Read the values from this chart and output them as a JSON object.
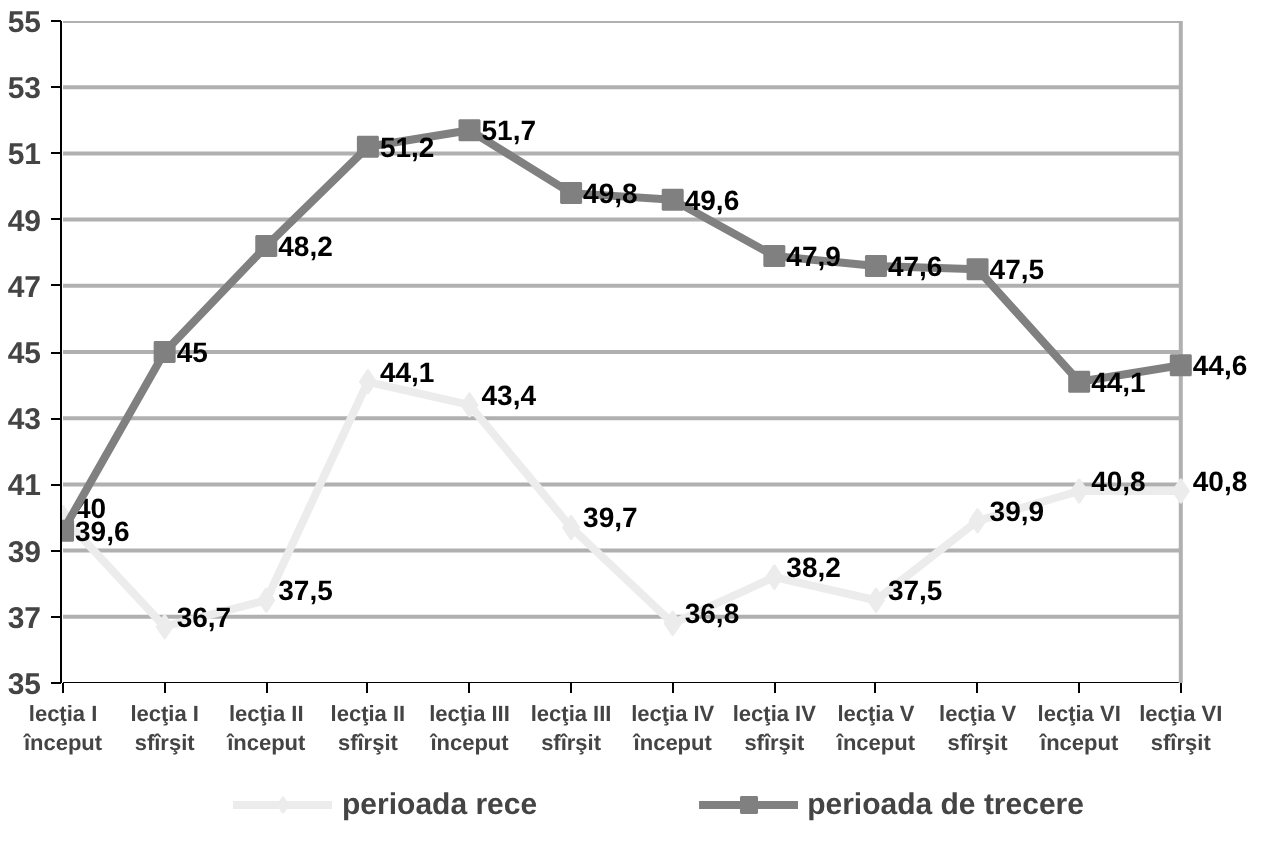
{
  "chart_data": {
    "type": "line",
    "categories": [
      "lecţia I început",
      "lecţia I sfîrşit",
      "lecţia II început",
      "lecţia II sfîrşit",
      "lecţia III început",
      "lecţia III sfîrşit",
      "lecţia IV început",
      "lecţia IV sfîrşit",
      "lecţia V început",
      "lecţia V sfîrşit",
      "lecţia VI început",
      "lecţia VI sfîrşit"
    ],
    "series": [
      {
        "name": "perioada rece",
        "color": "#ececec",
        "marker": "diamond",
        "values": [
          40,
          36.7,
          37.5,
          44.1,
          43.4,
          39.7,
          36.8,
          38.2,
          37.5,
          39.9,
          40.8,
          40.8
        ],
        "value_labels": [
          "40",
          "36,7",
          "37,5",
          "44,1",
          "43,4",
          "39,7",
          "36,8",
          "38,2",
          "37,5",
          "39,9",
          "40,8",
          "40,8"
        ]
      },
      {
        "name": "perioada de trecere",
        "color": "#808080",
        "marker": "square",
        "values": [
          39.6,
          45,
          48.2,
          51.2,
          51.7,
          49.8,
          49.6,
          47.9,
          47.6,
          47.5,
          44.1,
          44.6
        ],
        "value_labels": [
          "39,6",
          "45",
          "48,2",
          "51,2",
          "51,7",
          "49,8",
          "49,6",
          "47,9",
          "47,6",
          "47,5",
          "44,1",
          "44,6"
        ]
      }
    ],
    "ylim": [
      35,
      55
    ],
    "yticks": [
      35,
      37,
      39,
      41,
      43,
      45,
      47,
      49,
      51,
      53,
      55
    ],
    "grid": "y",
    "legend": "bottom",
    "data_labels": true,
    "line_style": "solid"
  }
}
